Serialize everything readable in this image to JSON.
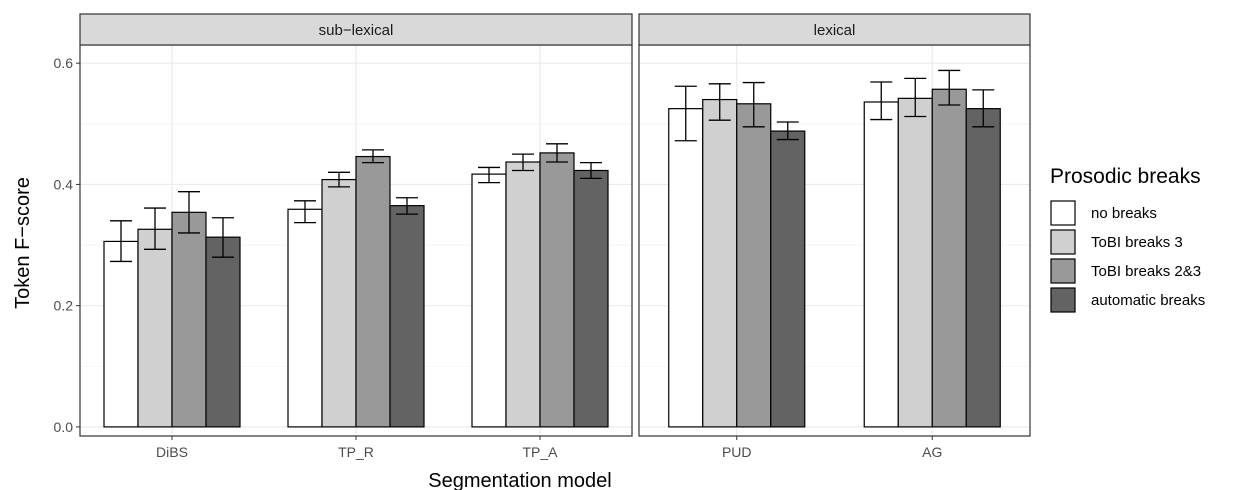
{
  "chart_data": {
    "type": "bar",
    "xlabel": "Segmentation model",
    "ylabel": "Token F−score",
    "ylim": [
      -0.015,
      0.63
    ],
    "yticks": [
      0.0,
      0.2,
      0.4,
      0.6
    ],
    "ytick_labels": [
      "0.0",
      "0.2",
      "0.4",
      "0.6"
    ],
    "grid": true,
    "legend": {
      "title": "Prosodic breaks",
      "position": "right",
      "entries": [
        "no breaks",
        "ToBI breaks 3",
        "ToBI breaks 2&3",
        "automatic breaks"
      ],
      "colors": [
        "#ffffff",
        "#d0d0d0",
        "#999999",
        "#636363"
      ]
    },
    "series_names": [
      "no breaks",
      "ToBI breaks 3",
      "ToBI breaks 2&3",
      "automatic breaks"
    ],
    "colors": [
      "#ffffff",
      "#d0d0d0",
      "#999999",
      "#636363"
    ],
    "facets": [
      {
        "label": "sub−lexical",
        "categories": [
          "DiBS",
          "TP_R",
          "TP_A"
        ],
        "values": [
          [
            0.306,
            0.326,
            0.354,
            0.313
          ],
          [
            0.359,
            0.408,
            0.446,
            0.365
          ],
          [
            0.417,
            0.437,
            0.452,
            0.423
          ]
        ],
        "errors": [
          [
            [
              0.273,
              0.34
            ],
            [
              0.293,
              0.361
            ],
            [
              0.32,
              0.388
            ],
            [
              0.28,
              0.345
            ]
          ],
          [
            [
              0.337,
              0.373
            ],
            [
              0.396,
              0.42
            ],
            [
              0.436,
              0.457
            ],
            [
              0.351,
              0.378
            ]
          ],
          [
            [
              0.403,
              0.428
            ],
            [
              0.423,
              0.45
            ],
            [
              0.437,
              0.467
            ],
            [
              0.41,
              0.436
            ]
          ]
        ]
      },
      {
        "label": "lexical",
        "categories": [
          "PUD",
          "AG"
        ],
        "values": [
          [
            0.525,
            0.54,
            0.533,
            0.488
          ],
          [
            0.536,
            0.542,
            0.557,
            0.525
          ]
        ],
        "errors": [
          [
            [
              0.472,
              0.562
            ],
            [
              0.506,
              0.566
            ],
            [
              0.495,
              0.568
            ],
            [
              0.474,
              0.503
            ]
          ],
          [
            [
              0.507,
              0.569
            ],
            [
              0.512,
              0.575
            ],
            [
              0.531,
              0.588
            ],
            [
              0.495,
              0.556
            ]
          ]
        ]
      }
    ]
  }
}
